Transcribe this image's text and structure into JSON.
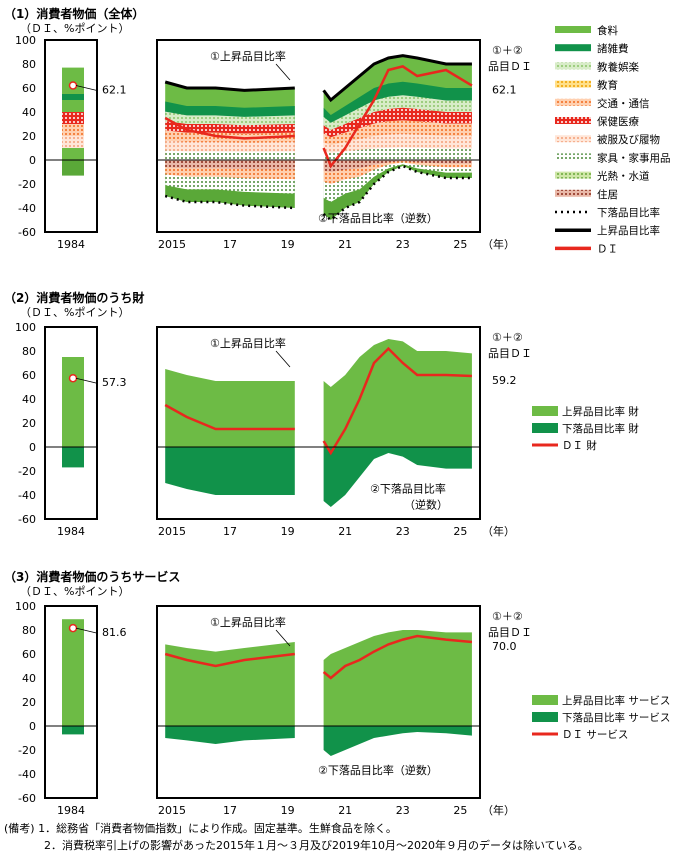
{
  "footnote": {
    "label": "(備考)",
    "lines": [
      "1．総務省「消費者物価指数」により作成。固定基準。生鮮食品を除く。",
      "2．消費税率引上げの影響があった2015年１月～３月及び2019年10月～2020年９月のデータは除いている。"
    ]
  },
  "colors": {
    "up": "#6dbb45",
    "down": "#11924a",
    "di": "#e8281e",
    "line": "#000000"
  },
  "chart_data": [
    {
      "type": "area",
      "title": "（1）消費者物価（全体）",
      "ylabel": "（ＤＩ、%ポイント）",
      "ylim": [
        -60,
        100
      ],
      "yticks": [
        100,
        80,
        60,
        40,
        20,
        0,
        -20,
        -40,
        -60
      ],
      "xtick_labels": [
        "2015",
        "17",
        "19",
        "21",
        "23",
        "25"
      ],
      "xunit": "（年）",
      "base_label": "1984",
      "base": {
        "up": 77,
        "down": -13,
        "di": 62.1,
        "di_label": "62.1"
      },
      "legend": [
        "食料",
        "諸雑費",
        "教養娯楽",
        "教育",
        "交通・通信",
        "保健医療",
        "被服及び履物",
        "家具・家事用品",
        "光熱・水道",
        "住居",
        "下落品目比率",
        "上昇品目比率",
        "ＤＩ"
      ],
      "annotations": {
        "up": "①上昇品目比率",
        "down": "②下落品目比率（逆数）",
        "di1": "①＋②",
        "di2": "品目ＤＩ",
        "last": "62.1"
      },
      "segments": [
        {
          "x": [
            2015.25,
            2016,
            2017,
            2018,
            2019.75
          ],
          "up": [
            65,
            60,
            60,
            58,
            60
          ],
          "down": [
            -30,
            -35,
            -35,
            -38,
            -40
          ],
          "di": [
            35,
            25,
            20,
            18,
            20
          ]
        },
        {
          "x": [
            2020.75,
            2021,
            2021.5,
            2022,
            2022.5,
            2023,
            2023.5,
            2024,
            2025,
            2025.9
          ],
          "up": [
            58,
            50,
            60,
            70,
            80,
            85,
            87,
            85,
            80,
            80
          ],
          "down": [
            -45,
            -50,
            -40,
            -35,
            -20,
            -10,
            -5,
            -10,
            -15,
            -15
          ],
          "di": [
            10,
            -5,
            10,
            30,
            50,
            75,
            78,
            70,
            75,
            62
          ]
        }
      ]
    },
    {
      "type": "area",
      "title": "（2）消費者物価のうち財",
      "ylabel": "（ＤＩ、%ポイント）",
      "ylim": [
        -60,
        100
      ],
      "yticks": [
        100,
        80,
        60,
        40,
        20,
        0,
        -20,
        -40,
        -60
      ],
      "xtick_labels": [
        "2015",
        "17",
        "19",
        "21",
        "23",
        "25"
      ],
      "xunit": "（年）",
      "base_label": "1984",
      "base": {
        "up": 75,
        "down": -17,
        "di": 57.3,
        "di_label": "57.3"
      },
      "legend": [
        "上昇品目比率 財",
        "下落品目比率 財",
        "ＤＩ 財"
      ],
      "annotations": {
        "up": "①上昇品目比率",
        "down": "②下落品目比率",
        "down2": "（逆数）",
        "di1": "①＋②",
        "di2": "品目ＤＩ",
        "last": "59.2"
      },
      "segments": [
        {
          "x": [
            2015.25,
            2016,
            2017,
            2018,
            2019.75
          ],
          "up": [
            65,
            60,
            55,
            55,
            55
          ],
          "down": [
            -30,
            -35,
            -40,
            -40,
            -40
          ],
          "di": [
            35,
            25,
            15,
            15,
            15
          ]
        },
        {
          "x": [
            2020.75,
            2021,
            2021.5,
            2022,
            2022.5,
            2023,
            2023.5,
            2024,
            2025,
            2025.9
          ],
          "up": [
            55,
            50,
            60,
            75,
            85,
            90,
            88,
            80,
            80,
            78
          ],
          "down": [
            -45,
            -50,
            -40,
            -25,
            -10,
            -5,
            -8,
            -15,
            -18,
            -18
          ],
          "di": [
            5,
            -5,
            15,
            40,
            70,
            82,
            70,
            60,
            60,
            59.2
          ]
        }
      ]
    },
    {
      "type": "area",
      "title": "（3）消費者物価のうちサービス",
      "ylabel": "（ＤＩ、%ポイント）",
      "ylim": [
        -60,
        100
      ],
      "yticks": [
        100,
        80,
        60,
        40,
        20,
        0,
        -20,
        -40,
        -60
      ],
      "xtick_labels": [
        "2015",
        "17",
        "19",
        "21",
        "23",
        "25"
      ],
      "xunit": "（年）",
      "base_label": "1984",
      "base": {
        "up": 89,
        "down": -7,
        "di": 81.6,
        "di_label": "81.6"
      },
      "legend": [
        "上昇品目比率 サービス",
        "下落品目比率 サービス",
        "ＤＩ サービス"
      ],
      "annotations": {
        "up": "①上昇品目比率",
        "down": "②下落品目比率（逆数）",
        "di1": "①＋②",
        "di2": "品目ＤＩ",
        "last": "70.0"
      },
      "segments": [
        {
          "x": [
            2015.25,
            2016,
            2017,
            2018,
            2019.75
          ],
          "up": [
            68,
            65,
            62,
            65,
            70
          ],
          "down": [
            -10,
            -12,
            -15,
            -12,
            -10
          ],
          "di": [
            60,
            55,
            50,
            55,
            60
          ]
        },
        {
          "x": [
            2020.75,
            2021,
            2021.5,
            2022,
            2022.5,
            2023,
            2023.5,
            2024,
            2025,
            2025.9
          ],
          "up": [
            55,
            60,
            65,
            70,
            75,
            78,
            80,
            80,
            78,
            78
          ],
          "down": [
            -20,
            -25,
            -20,
            -15,
            -10,
            -8,
            -6,
            -5,
            -6,
            -8
          ],
          "di": [
            45,
            40,
            50,
            55,
            62,
            68,
            72,
            75,
            72,
            70
          ]
        }
      ]
    }
  ]
}
